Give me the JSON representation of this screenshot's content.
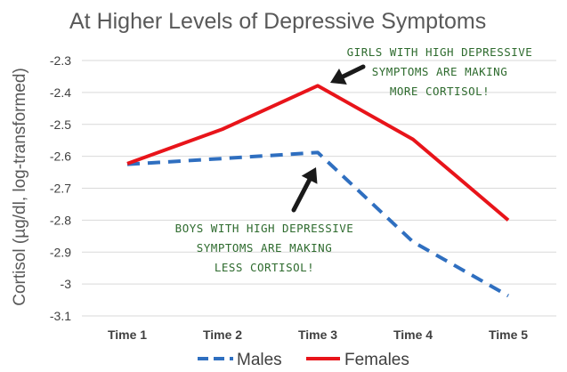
{
  "chart_data": {
    "type": "line",
    "title": "At Higher Levels of Depressive Symptoms",
    "ylabel": "Cortisol (µg/dl, log-transformed)",
    "xlabel": "",
    "categories": [
      "Time 1",
      "Time 2",
      "Time 3",
      "Time 4",
      "Time 5"
    ],
    "ylim": [
      -3.1,
      -2.3
    ],
    "yticks": [
      "-2.3",
      "-2.4",
      "-2.5",
      "-2.6",
      "-2.7",
      "-2.8",
      "-2.9",
      "-3",
      "-3.1"
    ],
    "grid": true,
    "legend": "bottom",
    "series": [
      {
        "name": "Males",
        "values": [
          -2.625,
          -2.607,
          -2.588,
          -2.868,
          -3.037
        ],
        "color": "#2f6fc0",
        "style": "dashed"
      },
      {
        "name": "Females",
        "values": [
          -2.623,
          -2.515,
          -2.379,
          -2.547,
          -2.8
        ],
        "color": "#e8141a",
        "style": "solid"
      }
    ],
    "annotations": [
      {
        "lines": [
          "GIRLS WITH HIGH DEPRESSIVE",
          "SYMPTOMS ARE MAKING",
          "MORE CORTISOL!"
        ],
        "color": "#2e6b2e"
      },
      {
        "lines": [
          "BOYS WITH HIGH DEPRESSIVE",
          "SYMPTOMS ARE MAKING",
          "LESS CORTISOL!"
        ],
        "color": "#2e6b2e"
      }
    ]
  }
}
